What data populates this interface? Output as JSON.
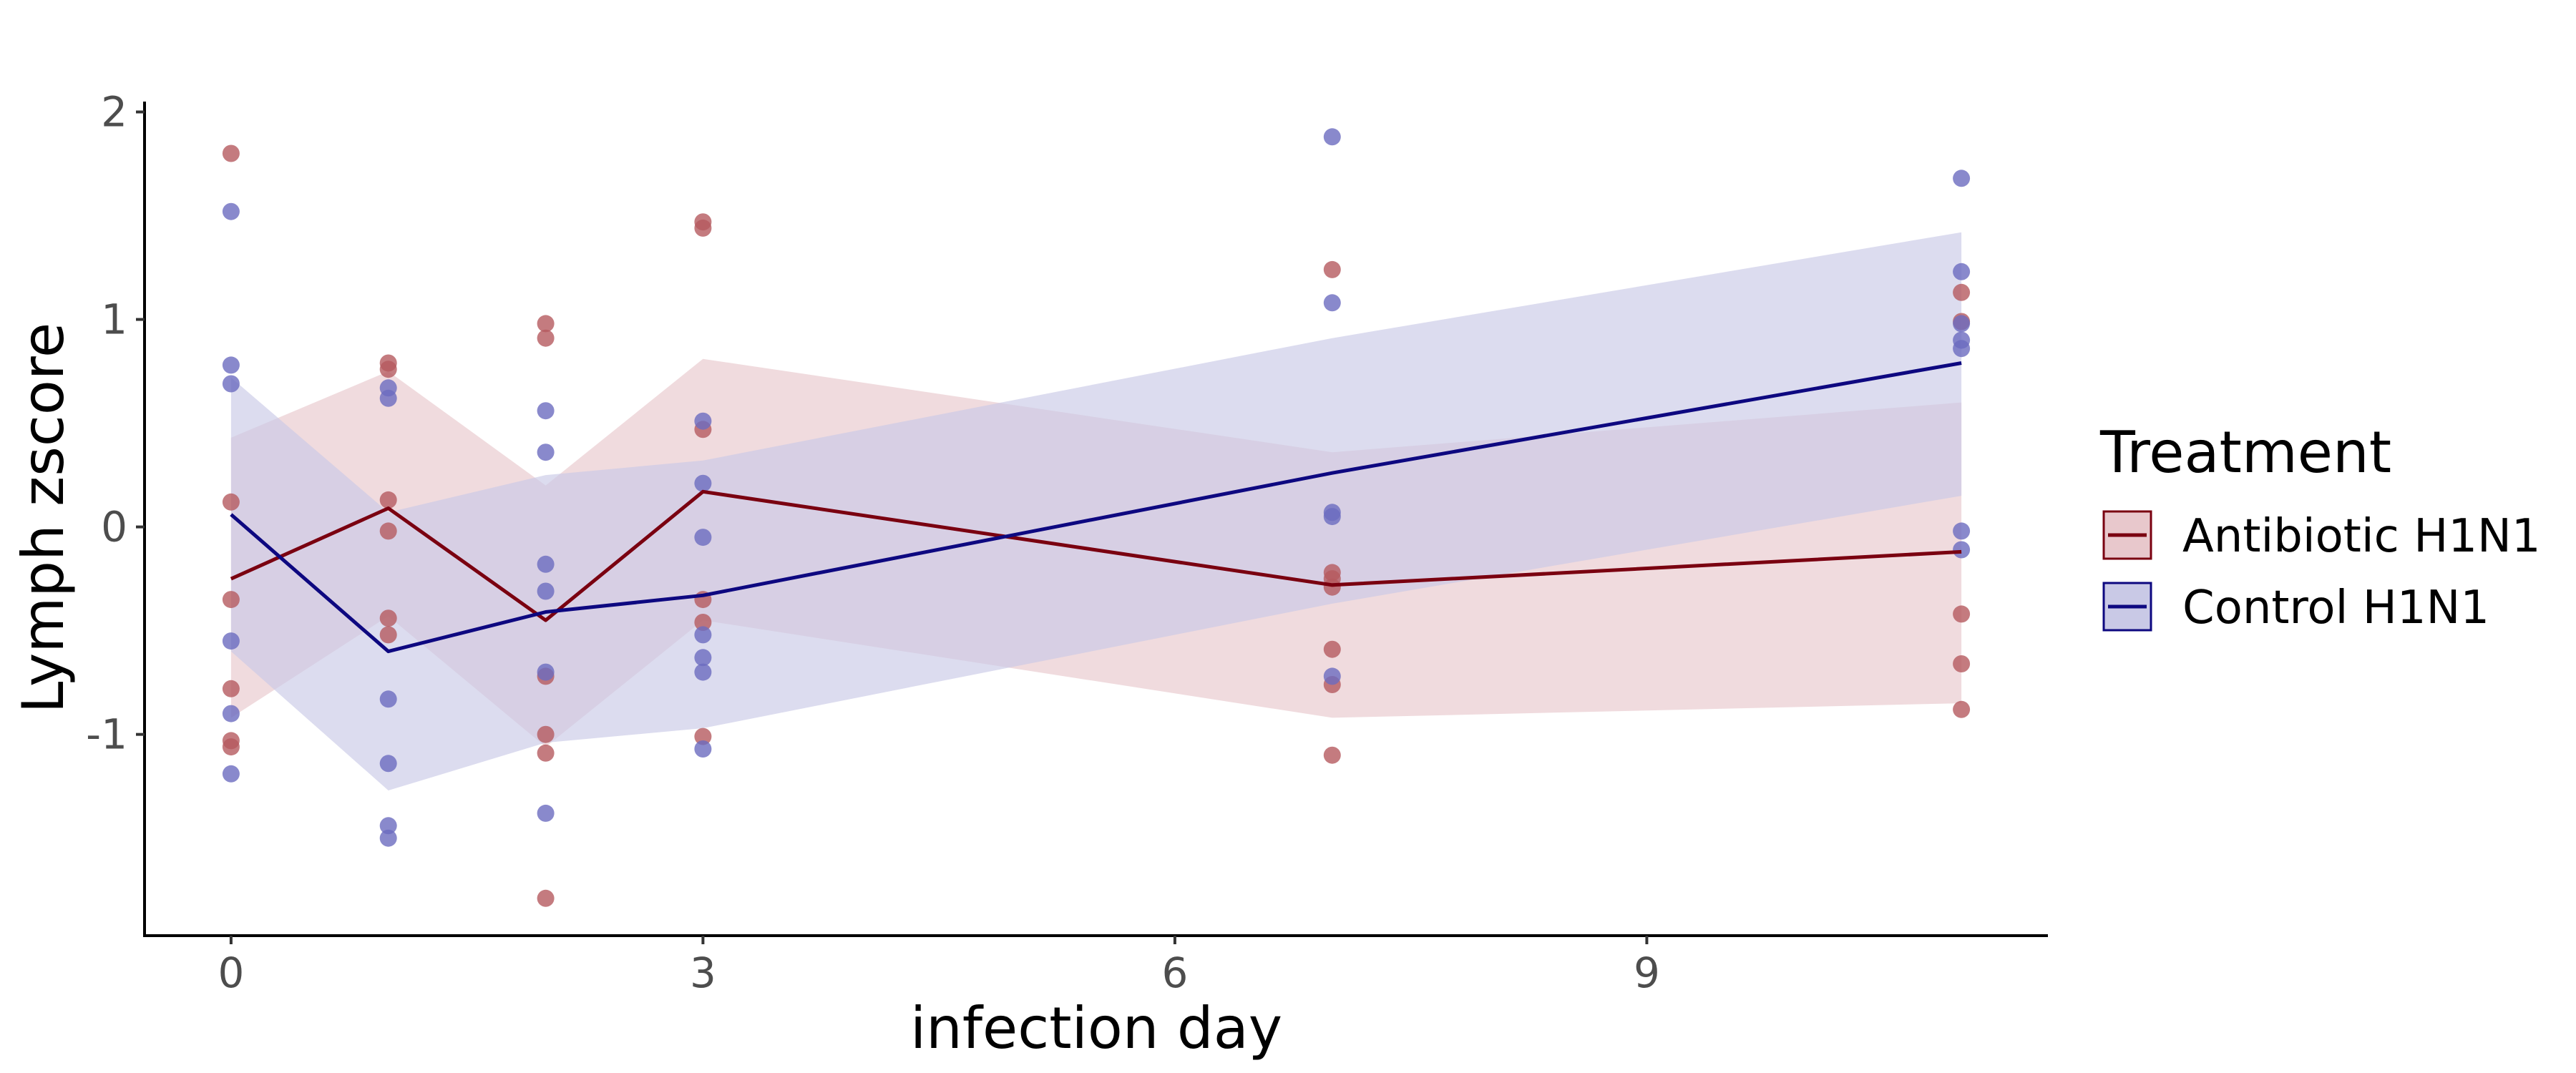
{
  "chart_data": {
    "type": "line",
    "title": "",
    "xlabel": "infection day",
    "ylabel": "Lymph zscore",
    "xlim": [
      -0.55,
      11.55
    ],
    "ylim": [
      -1.97,
      2.05
    ],
    "x_ticks": [
      0,
      3,
      6,
      9
    ],
    "y_ticks": [
      -1,
      0,
      1,
      2
    ],
    "grid": false,
    "legend": {
      "title": "Treatment",
      "placement": "right"
    },
    "series": [
      {
        "name": "Antibiotic H1N1",
        "color": "#7a0010",
        "ribbon_color": "#e8c8cc",
        "point_color": "#b55a5f",
        "mean": [
          {
            "x": 0,
            "y": -0.25
          },
          {
            "x": 1,
            "y": 0.09
          },
          {
            "x": 2,
            "y": -0.45
          },
          {
            "x": 3,
            "y": 0.17
          },
          {
            "x": 7,
            "y": -0.28
          },
          {
            "x": 11,
            "y": -0.12
          }
        ],
        "ribbon": [
          {
            "x": 0,
            "lo": -0.92,
            "hi": 0.43
          },
          {
            "x": 1,
            "lo": -0.43,
            "hi": 0.75
          },
          {
            "x": 2,
            "lo": -1.06,
            "hi": 0.2
          },
          {
            "x": 3,
            "lo": -0.45,
            "hi": 0.81
          },
          {
            "x": 7,
            "lo": -0.92,
            "hi": 0.36
          },
          {
            "x": 11,
            "lo": -0.85,
            "hi": 0.6
          }
        ],
        "points": [
          {
            "x": 0,
            "y": 1.8
          },
          {
            "x": 0,
            "y": 0.12
          },
          {
            "x": 0,
            "y": -0.35
          },
          {
            "x": 0,
            "y": -0.78
          },
          {
            "x": 0,
            "y": -1.03
          },
          {
            "x": 0,
            "y": -1.06
          },
          {
            "x": 1,
            "y": 0.79
          },
          {
            "x": 1,
            "y": 0.76
          },
          {
            "x": 1,
            "y": 0.13
          },
          {
            "x": 1,
            "y": -0.02
          },
          {
            "x": 1,
            "y": -0.44
          },
          {
            "x": 1,
            "y": -0.52
          },
          {
            "x": 2,
            "y": 0.98
          },
          {
            "x": 2,
            "y": 0.91
          },
          {
            "x": 2,
            "y": -0.72
          },
          {
            "x": 2,
            "y": -1.0
          },
          {
            "x": 2,
            "y": -1.09
          },
          {
            "x": 2,
            "y": -1.79
          },
          {
            "x": 3,
            "y": 1.47
          },
          {
            "x": 3,
            "y": 1.44
          },
          {
            "x": 3,
            "y": 0.47
          },
          {
            "x": 3,
            "y": -0.35
          },
          {
            "x": 3,
            "y": -0.46
          },
          {
            "x": 3,
            "y": -1.01
          },
          {
            "x": 7,
            "y": 1.24
          },
          {
            "x": 7,
            "y": -0.22
          },
          {
            "x": 7,
            "y": -0.25
          },
          {
            "x": 7,
            "y": -0.29
          },
          {
            "x": 7,
            "y": -0.59
          },
          {
            "x": 7,
            "y": -0.76
          },
          {
            "x": 7,
            "y": -1.1
          },
          {
            "x": 11,
            "y": 1.13
          },
          {
            "x": 11,
            "y": 0.99
          },
          {
            "x": 11,
            "y": -0.42
          },
          {
            "x": 11,
            "y": -0.66
          },
          {
            "x": 11,
            "y": -0.88
          }
        ]
      },
      {
        "name": "Control H1N1",
        "color": "#0d0880",
        "ribbon_color": "#c9c9e6",
        "point_color": "#6b6bbf",
        "mean": [
          {
            "x": 0,
            "y": 0.06
          },
          {
            "x": 1,
            "y": -0.6
          },
          {
            "x": 2,
            "y": -0.41
          },
          {
            "x": 3,
            "y": -0.33
          },
          {
            "x": 7,
            "y": 0.26
          },
          {
            "x": 11,
            "y": 0.79
          }
        ],
        "ribbon": [
          {
            "x": 0,
            "lo": -0.6,
            "hi": 0.72
          },
          {
            "x": 1,
            "lo": -1.27,
            "hi": 0.07
          },
          {
            "x": 2,
            "lo": -1.04,
            "hi": 0.25
          },
          {
            "x": 3,
            "lo": -0.97,
            "hi": 0.32
          },
          {
            "x": 7,
            "lo": -0.37,
            "hi": 0.91
          },
          {
            "x": 11,
            "lo": 0.15,
            "hi": 1.42
          }
        ],
        "points": [
          {
            "x": 0,
            "y": 1.52
          },
          {
            "x": 0,
            "y": 0.78
          },
          {
            "x": 0,
            "y": 0.69
          },
          {
            "x": 0,
            "y": -0.55
          },
          {
            "x": 0,
            "y": -0.9
          },
          {
            "x": 0,
            "y": -1.19
          },
          {
            "x": 1,
            "y": 0.67
          },
          {
            "x": 1,
            "y": 0.62
          },
          {
            "x": 1,
            "y": -0.83
          },
          {
            "x": 1,
            "y": -1.14
          },
          {
            "x": 1,
            "y": -1.44
          },
          {
            "x": 1,
            "y": -1.5
          },
          {
            "x": 2,
            "y": 0.56
          },
          {
            "x": 2,
            "y": 0.36
          },
          {
            "x": 2,
            "y": -0.18
          },
          {
            "x": 2,
            "y": -0.31
          },
          {
            "x": 2,
            "y": -0.7
          },
          {
            "x": 2,
            "y": -1.38
          },
          {
            "x": 3,
            "y": 0.51
          },
          {
            "x": 3,
            "y": 0.21
          },
          {
            "x": 3,
            "y": -0.05
          },
          {
            "x": 3,
            "y": -0.52
          },
          {
            "x": 3,
            "y": -0.63
          },
          {
            "x": 3,
            "y": -0.7
          },
          {
            "x": 3,
            "y": -1.07
          },
          {
            "x": 7,
            "y": 1.88
          },
          {
            "x": 7,
            "y": 1.08
          },
          {
            "x": 7,
            "y": 0.07
          },
          {
            "x": 7,
            "y": 0.05
          },
          {
            "x": 7,
            "y": -0.72
          },
          {
            "x": 11,
            "y": 1.68
          },
          {
            "x": 11,
            "y": 1.23
          },
          {
            "x": 11,
            "y": 0.98
          },
          {
            "x": 11,
            "y": 0.9
          },
          {
            "x": 11,
            "y": 0.86
          },
          {
            "x": 11,
            "y": -0.02
          },
          {
            "x": 11,
            "y": -0.11
          }
        ]
      }
    ]
  }
}
